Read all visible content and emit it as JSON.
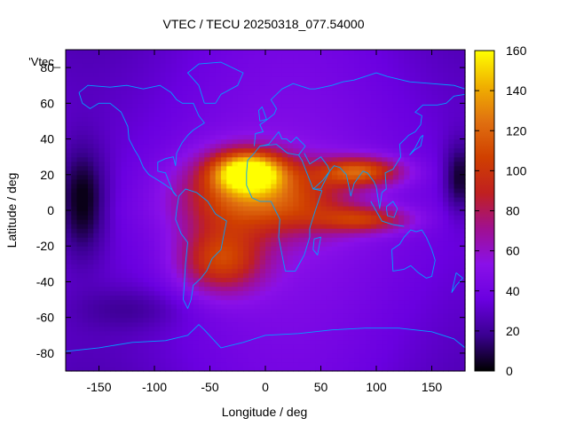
{
  "chart_data": {
    "type": "heatmap",
    "title": "VTEC / TECU 20250318_077.54000",
    "xlabel": "Longitude / deg",
    "ylabel": "Latitude / deg",
    "xlim": [
      -180,
      180
    ],
    "ylim": [
      -90,
      90
    ],
    "x_ticks": [
      -150,
      -100,
      -50,
      0,
      50,
      100,
      150
    ],
    "y_ticks": [
      -80,
      -60,
      -40,
      -20,
      0,
      20,
      40,
      60,
      80
    ],
    "colorbar": {
      "range": [
        0,
        160
      ],
      "ticks": [
        0,
        20,
        40,
        60,
        80,
        100,
        120,
        140,
        160
      ],
      "palette": [
        "#000000",
        "#3a0090",
        "#6a00e0",
        "#8a10e8",
        "#a01090",
        "#c02020",
        "#d04000",
        "#e07010",
        "#f0b000",
        "#ffff00"
      ]
    },
    "legend_entries": [
      "'Vtec_"
    ],
    "overlay": "coastlines",
    "coastline_color": "#00a0ff",
    "grid": false,
    "features": [
      {
        "name": "primary equatorial crest (Atlantic/Africa)",
        "lon": -15,
        "lat": 22,
        "vtec_max": 150
      },
      {
        "name": "southern crest (South America/S Atlantic)",
        "lon": -40,
        "lat": -25,
        "vtec_max": 105
      },
      {
        "name": "secondary crest (Arabia/India)",
        "lon": 80,
        "lat": 22,
        "vtec_max": 115
      },
      {
        "name": "southern tongue (Indian Ocean)",
        "lon": 90,
        "lat": -5,
        "vtec_max": 95
      },
      {
        "name": "night-side minimum (Pacific)",
        "lon": -165,
        "lat": 5,
        "vtec_min": 5
      }
    ]
  }
}
